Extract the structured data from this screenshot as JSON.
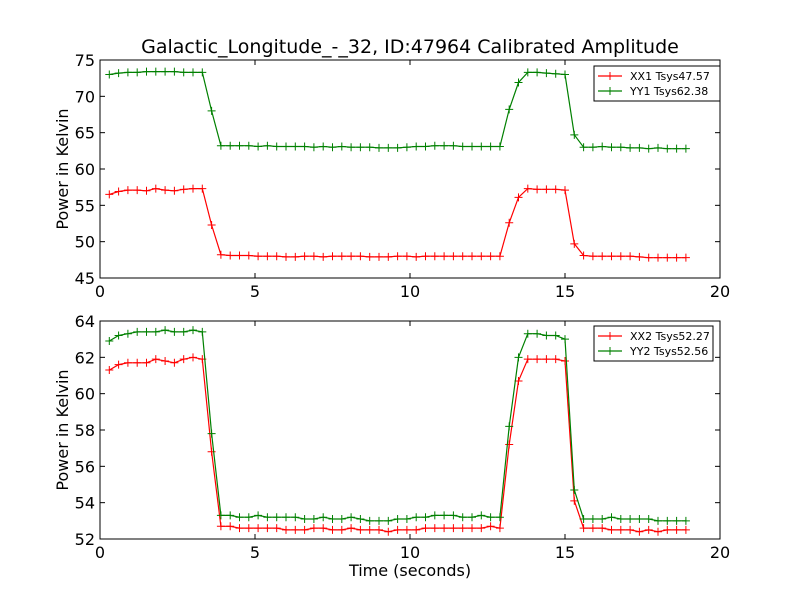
{
  "chart_data": [
    {
      "type": "line",
      "title": "Galactic_Longitude_-_32, ID:47964 Calibrated Amplitude",
      "xlabel": "",
      "ylabel": "Power in Kelvin",
      "xlim": [
        0,
        20
      ],
      "ylim": [
        45,
        75
      ],
      "xticks": [
        0,
        5,
        10,
        15,
        20
      ],
      "yticks": [
        45,
        50,
        55,
        60,
        65,
        70,
        75
      ],
      "legend_position": "top-right",
      "x": [
        0.3,
        0.6,
        0.9,
        1.2,
        1.5,
        1.8,
        2.1,
        2.4,
        2.7,
        3.0,
        3.3,
        3.6,
        3.9,
        4.2,
        4.5,
        4.8,
        5.1,
        5.4,
        5.7,
        6.0,
        6.3,
        6.6,
        6.9,
        7.2,
        7.5,
        7.8,
        8.1,
        8.4,
        8.7,
        9.0,
        9.3,
        9.6,
        9.9,
        10.2,
        10.5,
        10.8,
        11.1,
        11.4,
        11.7,
        12.0,
        12.3,
        12.6,
        12.9,
        13.2,
        13.5,
        13.8,
        14.1,
        14.4,
        14.7,
        15.0,
        15.3,
        15.6,
        15.9,
        16.2,
        16.5,
        16.8,
        17.1,
        17.4,
        17.7,
        18.0,
        18.3,
        18.6,
        18.9
      ],
      "series": [
        {
          "name": "XX1 Tsys47.57",
          "color": "#ff0000",
          "values": [
            56.5,
            56.9,
            57.1,
            57.1,
            57.0,
            57.3,
            57.1,
            57.0,
            57.2,
            57.3,
            57.3,
            52.3,
            48.2,
            48.1,
            48.1,
            48.1,
            48.0,
            48.0,
            48.0,
            47.9,
            47.9,
            48.0,
            48.0,
            47.9,
            48.0,
            48.0,
            48.0,
            48.0,
            47.9,
            47.9,
            47.9,
            48.0,
            48.0,
            47.9,
            48.0,
            48.0,
            48.0,
            48.0,
            48.0,
            48.0,
            48.0,
            48.0,
            48.0,
            52.6,
            56.1,
            57.3,
            57.2,
            57.2,
            57.2,
            57.1,
            49.7,
            48.1,
            48.0,
            48.0,
            48.0,
            48.0,
            48.0,
            47.9,
            47.8,
            47.8,
            47.8,
            47.8,
            47.8
          ]
        },
        {
          "name": "YY1 Tsys62.38",
          "color": "#008000",
          "values": [
            73.0,
            73.2,
            73.3,
            73.3,
            73.4,
            73.4,
            73.4,
            73.4,
            73.3,
            73.3,
            73.3,
            68.0,
            63.2,
            63.2,
            63.2,
            63.2,
            63.1,
            63.2,
            63.1,
            63.1,
            63.1,
            63.1,
            63.0,
            63.1,
            63.0,
            63.1,
            63.0,
            63.0,
            63.0,
            62.9,
            62.9,
            62.9,
            63.0,
            63.1,
            63.1,
            63.2,
            63.2,
            63.2,
            63.1,
            63.1,
            63.1,
            63.1,
            63.1,
            68.2,
            71.9,
            73.3,
            73.3,
            73.2,
            73.1,
            73.0,
            64.7,
            63.0,
            63.0,
            63.1,
            63.0,
            63.0,
            62.9,
            62.9,
            62.8,
            62.9,
            62.8,
            62.8,
            62.8
          ]
        }
      ]
    },
    {
      "type": "line",
      "title": "",
      "xlabel": "Time (seconds)",
      "ylabel": "Power in Kelvin",
      "xlim": [
        0,
        20
      ],
      "ylim": [
        52,
        64
      ],
      "xticks": [
        0,
        5,
        10,
        15,
        20
      ],
      "yticks": [
        52,
        54,
        56,
        58,
        60,
        62,
        64
      ],
      "legend_position": "top-right",
      "x": [
        0.3,
        0.6,
        0.9,
        1.2,
        1.5,
        1.8,
        2.1,
        2.4,
        2.7,
        3.0,
        3.3,
        3.6,
        3.9,
        4.2,
        4.5,
        4.8,
        5.1,
        5.4,
        5.7,
        6.0,
        6.3,
        6.6,
        6.9,
        7.2,
        7.5,
        7.8,
        8.1,
        8.4,
        8.7,
        9.0,
        9.3,
        9.6,
        9.9,
        10.2,
        10.5,
        10.8,
        11.1,
        11.4,
        11.7,
        12.0,
        12.3,
        12.6,
        12.9,
        13.2,
        13.5,
        13.8,
        14.1,
        14.4,
        14.7,
        15.0,
        15.3,
        15.6,
        15.9,
        16.2,
        16.5,
        16.8,
        17.1,
        17.4,
        17.7,
        18.0,
        18.3,
        18.6,
        18.9
      ],
      "series": [
        {
          "name": "XX2 Tsys52.27",
          "color": "#ff0000",
          "values": [
            61.3,
            61.6,
            61.7,
            61.7,
            61.7,
            61.9,
            61.8,
            61.7,
            61.9,
            62.0,
            61.9,
            56.8,
            52.7,
            52.7,
            52.6,
            52.6,
            52.6,
            52.6,
            52.6,
            52.5,
            52.5,
            52.5,
            52.6,
            52.6,
            52.5,
            52.5,
            52.6,
            52.5,
            52.5,
            52.5,
            52.4,
            52.5,
            52.5,
            52.5,
            52.6,
            52.6,
            52.6,
            52.6,
            52.6,
            52.6,
            52.6,
            52.7,
            52.6,
            57.2,
            60.7,
            61.9,
            61.9,
            61.9,
            61.9,
            61.8,
            54.1,
            52.6,
            52.6,
            52.6,
            52.5,
            52.5,
            52.5,
            52.4,
            52.5,
            52.4,
            52.5,
            52.5,
            52.5
          ]
        },
        {
          "name": "YY2 Tsys52.56",
          "color": "#008000",
          "values": [
            62.9,
            63.2,
            63.3,
            63.4,
            63.4,
            63.4,
            63.5,
            63.4,
            63.4,
            63.5,
            63.4,
            57.8,
            53.3,
            53.3,
            53.2,
            53.2,
            53.3,
            53.2,
            53.2,
            53.2,
            53.2,
            53.1,
            53.1,
            53.2,
            53.1,
            53.1,
            53.2,
            53.1,
            53.0,
            53.0,
            53.0,
            53.1,
            53.1,
            53.2,
            53.2,
            53.3,
            53.3,
            53.3,
            53.2,
            53.2,
            53.3,
            53.2,
            53.2,
            58.2,
            62.0,
            63.3,
            63.3,
            63.2,
            63.2,
            63.0,
            54.7,
            53.1,
            53.1,
            53.1,
            53.2,
            53.1,
            53.1,
            53.1,
            53.1,
            53.0,
            53.0,
            53.0,
            53.0
          ]
        }
      ]
    }
  ]
}
